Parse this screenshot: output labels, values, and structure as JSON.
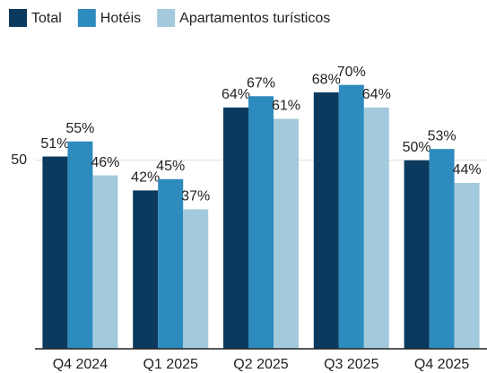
{
  "chart_data": {
    "type": "bar",
    "categories": [
      "Q4 2024",
      "Q1 2025",
      "Q2 2025",
      "Q3 2025",
      "Q4 2025"
    ],
    "series": [
      {
        "name": "Total",
        "color": "#0b3a5e",
        "values": [
          51,
          42,
          64,
          68,
          50
        ],
        "value_labels": [
          "51%",
          "42%",
          "64%",
          "68%",
          "50%"
        ]
      },
      {
        "name": "Hotéis",
        "color": "#2e8bbd",
        "values": [
          55,
          45,
          67,
          70,
          53
        ],
        "value_labels": [
          "55%",
          "45%",
          "67%",
          "70%",
          "53%"
        ]
      },
      {
        "name": "Apartamentos turísticos",
        "color": "#a3c9dc",
        "values": [
          46,
          37,
          61,
          64,
          44
        ],
        "value_labels": [
          "46%",
          "37%",
          "61%",
          "64%",
          "44%"
        ]
      }
    ],
    "ylim": [
      0,
      83
    ],
    "yticks": [
      50
    ],
    "grid": true,
    "legend": "top-left"
  }
}
